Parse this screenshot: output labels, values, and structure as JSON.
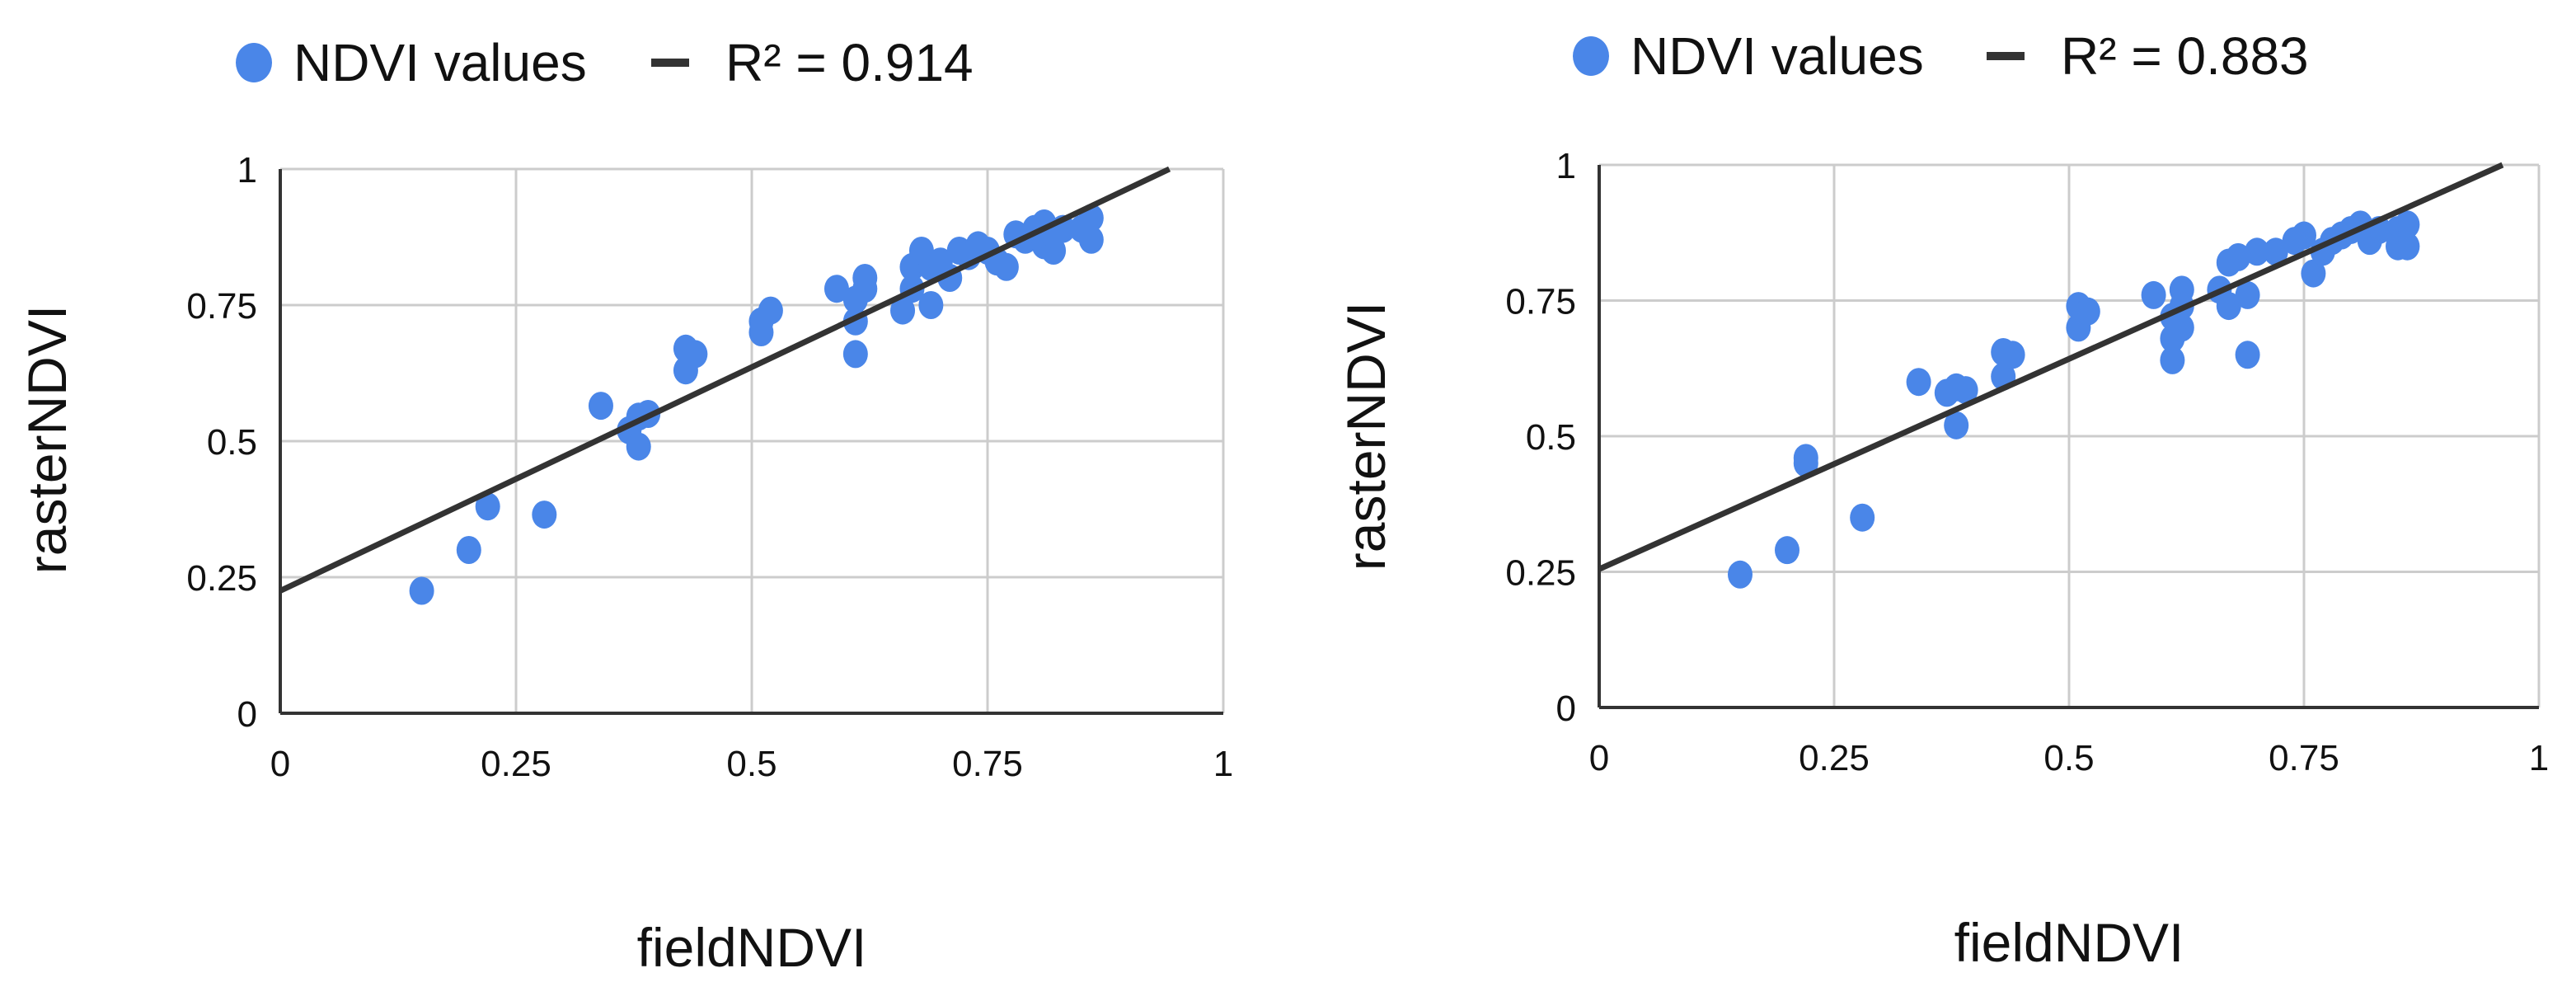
{
  "colors": {
    "point": "#4A86E8",
    "trendline": "#333333",
    "grid": "#CCCCCC",
    "axis": "#333333",
    "text": "#111111"
  },
  "chart_data": [
    {
      "type": "scatter",
      "title": "",
      "xlabel": "fieldNDVI",
      "ylabel": "rasterNDVI",
      "xlim": [
        0,
        1
      ],
      "ylim": [
        0,
        1
      ],
      "xticks": [
        "0",
        "0.25",
        "0.5",
        "0.75",
        "1"
      ],
      "yticks": [
        "0",
        "0.25",
        "0.5",
        "0.75",
        "1"
      ],
      "grid": true,
      "legend_position": "top",
      "legend": {
        "points_label": "NDVI values",
        "trendline_label": "R² = 0.914"
      },
      "trendline": {
        "intercept": 0.225,
        "slope": 0.822
      },
      "points": [
        [
          0.15,
          0.225
        ],
        [
          0.2,
          0.3
        ],
        [
          0.22,
          0.38
        ],
        [
          0.28,
          0.365
        ],
        [
          0.34,
          0.565
        ],
        [
          0.37,
          0.52
        ],
        [
          0.38,
          0.545
        ],
        [
          0.38,
          0.49
        ],
        [
          0.39,
          0.55
        ],
        [
          0.43,
          0.63
        ],
        [
          0.43,
          0.67
        ],
        [
          0.44,
          0.66
        ],
        [
          0.51,
          0.7
        ],
        [
          0.51,
          0.72
        ],
        [
          0.52,
          0.74
        ],
        [
          0.59,
          0.78
        ],
        [
          0.61,
          0.72
        ],
        [
          0.61,
          0.66
        ],
        [
          0.61,
          0.76
        ],
        [
          0.62,
          0.78
        ],
        [
          0.62,
          0.8
        ],
        [
          0.66,
          0.74
        ],
        [
          0.67,
          0.78
        ],
        [
          0.67,
          0.82
        ],
        [
          0.68,
          0.85
        ],
        [
          0.69,
          0.75
        ],
        [
          0.69,
          0.82
        ],
        [
          0.7,
          0.83
        ],
        [
          0.71,
          0.8
        ],
        [
          0.72,
          0.85
        ],
        [
          0.73,
          0.84
        ],
        [
          0.74,
          0.86
        ],
        [
          0.75,
          0.85
        ],
        [
          0.76,
          0.83
        ],
        [
          0.77,
          0.82
        ],
        [
          0.78,
          0.88
        ],
        [
          0.79,
          0.87
        ],
        [
          0.8,
          0.89
        ],
        [
          0.81,
          0.9
        ],
        [
          0.81,
          0.86
        ],
        [
          0.82,
          0.85
        ],
        [
          0.82,
          0.88
        ],
        [
          0.83,
          0.89
        ],
        [
          0.85,
          0.89
        ],
        [
          0.86,
          0.91
        ],
        [
          0.86,
          0.87
        ]
      ]
    },
    {
      "type": "scatter",
      "title": "",
      "xlabel": "fieldNDVI",
      "ylabel": "rasterNDVI",
      "xlim": [
        0,
        1
      ],
      "ylim": [
        0,
        1
      ],
      "xticks": [
        "0",
        "0.25",
        "0.5",
        "0.75",
        "1"
      ],
      "yticks": [
        "0",
        "0.25",
        "0.5",
        "0.75",
        "1"
      ],
      "grid": true,
      "legend_position": "top",
      "legend": {
        "points_label": "NDVI values",
        "trendline_label": "R² = 0.883"
      },
      "trendline": {
        "intercept": 0.255,
        "slope": 0.775
      },
      "points": [
        [
          0.15,
          0.245
        ],
        [
          0.2,
          0.29
        ],
        [
          0.22,
          0.45
        ],
        [
          0.22,
          0.46
        ],
        [
          0.28,
          0.35
        ],
        [
          0.34,
          0.6
        ],
        [
          0.37,
          0.58
        ],
        [
          0.38,
          0.52
        ],
        [
          0.38,
          0.59
        ],
        [
          0.39,
          0.585
        ],
        [
          0.43,
          0.61
        ],
        [
          0.43,
          0.655
        ],
        [
          0.44,
          0.65
        ],
        [
          0.51,
          0.7
        ],
        [
          0.51,
          0.74
        ],
        [
          0.52,
          0.73
        ],
        [
          0.59,
          0.76
        ],
        [
          0.61,
          0.64
        ],
        [
          0.61,
          0.68
        ],
        [
          0.61,
          0.72
        ],
        [
          0.62,
          0.7
        ],
        [
          0.62,
          0.74
        ],
        [
          0.62,
          0.77
        ],
        [
          0.66,
          0.77
        ],
        [
          0.67,
          0.74
        ],
        [
          0.67,
          0.82
        ],
        [
          0.68,
          0.83
        ],
        [
          0.69,
          0.65
        ],
        [
          0.69,
          0.76
        ],
        [
          0.7,
          0.84
        ],
        [
          0.72,
          0.84
        ],
        [
          0.74,
          0.86
        ],
        [
          0.75,
          0.87
        ],
        [
          0.76,
          0.8
        ],
        [
          0.77,
          0.84
        ],
        [
          0.78,
          0.86
        ],
        [
          0.79,
          0.87
        ],
        [
          0.8,
          0.88
        ],
        [
          0.81,
          0.89
        ],
        [
          0.82,
          0.86
        ],
        [
          0.83,
          0.88
        ],
        [
          0.85,
          0.85
        ],
        [
          0.85,
          0.88
        ],
        [
          0.86,
          0.85
        ],
        [
          0.86,
          0.89
        ]
      ]
    }
  ]
}
